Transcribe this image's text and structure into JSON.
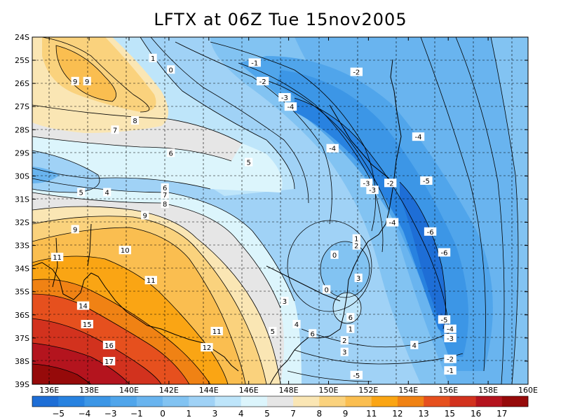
{
  "title": "LFTX at 06Z Tue 15nov2005",
  "x_ticks": [
    "136E",
    "138E",
    "140E",
    "142E",
    "144E",
    "146E",
    "148E",
    "150E",
    "152E",
    "154E",
    "156E",
    "158E",
    "160E"
  ],
  "y_ticks": [
    "24S",
    "25S",
    "26S",
    "27S",
    "28S",
    "29S",
    "30S",
    "31S",
    "32S",
    "33S",
    "34S",
    "35S",
    "36S",
    "37S",
    "38S",
    "39S"
  ],
  "contour_labels": [
    {
      "t": "1",
      "lon": 141.2,
      "lat": -24.9
    },
    {
      "t": "0",
      "lon": 142.1,
      "lat": -25.4
    },
    {
      "t": "-1",
      "lon": 146.3,
      "lat": -25.1
    },
    {
      "t": "-2",
      "lon": 146.7,
      "lat": -25.9
    },
    {
      "t": "-2",
      "lon": 151.4,
      "lat": -25.5
    },
    {
      "t": "-3",
      "lon": 147.8,
      "lat": -26.6
    },
    {
      "t": "-4",
      "lon": 148.1,
      "lat": -27.0
    },
    {
      "t": "9",
      "lon": 137.3,
      "lat": -25.9
    },
    {
      "t": "9",
      "lon": 137.9,
      "lat": -25.9
    },
    {
      "t": "8",
      "lon": 140.3,
      "lat": -27.6
    },
    {
      "t": "7",
      "lon": 139.3,
      "lat": -28.0
    },
    {
      "t": "6",
      "lon": 142.1,
      "lat": -29.0
    },
    {
      "t": "5",
      "lon": 146.0,
      "lat": -29.4
    },
    {
      "t": "-4",
      "lon": 150.2,
      "lat": -28.8
    },
    {
      "t": "-4",
      "lon": 154.5,
      "lat": -28.3
    },
    {
      "t": "-5",
      "lon": 154.9,
      "lat": -30.2
    },
    {
      "t": "-2",
      "lon": 153.1,
      "lat": -30.3
    },
    {
      "t": "-3",
      "lon": 151.9,
      "lat": -30.3
    },
    {
      "t": "-3",
      "lon": 152.2,
      "lat": -30.6
    },
    {
      "t": "5",
      "lon": 137.6,
      "lat": -30.7
    },
    {
      "t": "4",
      "lon": 138.9,
      "lat": -30.7
    },
    {
      "t": "6",
      "lon": 141.8,
      "lat": -30.5
    },
    {
      "t": "7",
      "lon": 141.8,
      "lat": -30.8
    },
    {
      "t": "8",
      "lon": 141.8,
      "lat": -31.2
    },
    {
      "t": "9",
      "lon": 140.8,
      "lat": -31.7
    },
    {
      "t": "9",
      "lon": 137.3,
      "lat": -32.3
    },
    {
      "t": "-4",
      "lon": 153.2,
      "lat": -32.0
    },
    {
      "t": "-6",
      "lon": 155.1,
      "lat": -32.4
    },
    {
      "t": "1",
      "lon": 151.4,
      "lat": -32.7
    },
    {
      "t": "2",
      "lon": 151.4,
      "lat": -33.0
    },
    {
      "t": "0",
      "lon": 150.3,
      "lat": -33.4
    },
    {
      "t": "-6",
      "lon": 155.8,
      "lat": -33.3
    },
    {
      "t": "10",
      "lon": 139.8,
      "lat": -33.2
    },
    {
      "t": "11",
      "lon": 136.4,
      "lat": -33.5
    },
    {
      "t": "3",
      "lon": 151.5,
      "lat": -34.4
    },
    {
      "t": "11",
      "lon": 141.1,
      "lat": -34.5
    },
    {
      "t": "0",
      "lon": 149.9,
      "lat": -34.9
    },
    {
      "t": "3",
      "lon": 147.8,
      "lat": -35.4
    },
    {
      "t": "14",
      "lon": 137.7,
      "lat": -35.6
    },
    {
      "t": "6",
      "lon": 151.1,
      "lat": -36.1
    },
    {
      "t": "-5",
      "lon": 155.8,
      "lat": -36.2
    },
    {
      "t": "15",
      "lon": 137.9,
      "lat": -36.4
    },
    {
      "t": "4",
      "lon": 148.4,
      "lat": -36.4
    },
    {
      "t": "1",
      "lon": 151.1,
      "lat": -36.6
    },
    {
      "t": "-4",
      "lon": 156.1,
      "lat": -36.6
    },
    {
      "t": "5",
      "lon": 147.2,
      "lat": -36.7
    },
    {
      "t": "11",
      "lon": 144.4,
      "lat": -36.7
    },
    {
      "t": "6",
      "lon": 149.2,
      "lat": -36.8
    },
    {
      "t": "-3",
      "lon": 156.1,
      "lat": -37.0
    },
    {
      "t": "2",
      "lon": 150.8,
      "lat": -37.1
    },
    {
      "t": "16",
      "lon": 139.0,
      "lat": -37.3
    },
    {
      "t": "4",
      "lon": 154.3,
      "lat": -37.3
    },
    {
      "t": "12",
      "lon": 143.9,
      "lat": -37.4
    },
    {
      "t": "3",
      "lon": 150.8,
      "lat": -37.6
    },
    {
      "t": "-2",
      "lon": 156.1,
      "lat": -37.9
    },
    {
      "t": "17",
      "lon": 139.0,
      "lat": -38.0
    },
    {
      "t": "-1",
      "lon": 156.1,
      "lat": -38.4
    },
    {
      "t": "-5",
      "lon": 151.4,
      "lat": -38.6
    }
  ],
  "colorbar": {
    "labels": [
      "-5",
      "-4",
      "-3",
      "-1",
      "0",
      "1",
      "3",
      "4",
      "5",
      "7",
      "8",
      "9",
      "11",
      "12",
      "13",
      "15",
      "16",
      "17"
    ],
    "colors": [
      "#1e6ed6",
      "#2882e0",
      "#3c96e6",
      "#50a5eb",
      "#69b4ef",
      "#82c3f2",
      "#a0d2f6",
      "#bee5fa",
      "#dcf5fc",
      "#e6e6e6",
      "#fae6b4",
      "#fad27d",
      "#fabe50",
      "#faa514",
      "#f08214",
      "#e6501e",
      "#d2321e",
      "#b4141e",
      "#960a0a"
    ]
  },
  "map_colors": {
    "land": "#000000",
    "grid": "#000000",
    "contour": "#000000"
  }
}
